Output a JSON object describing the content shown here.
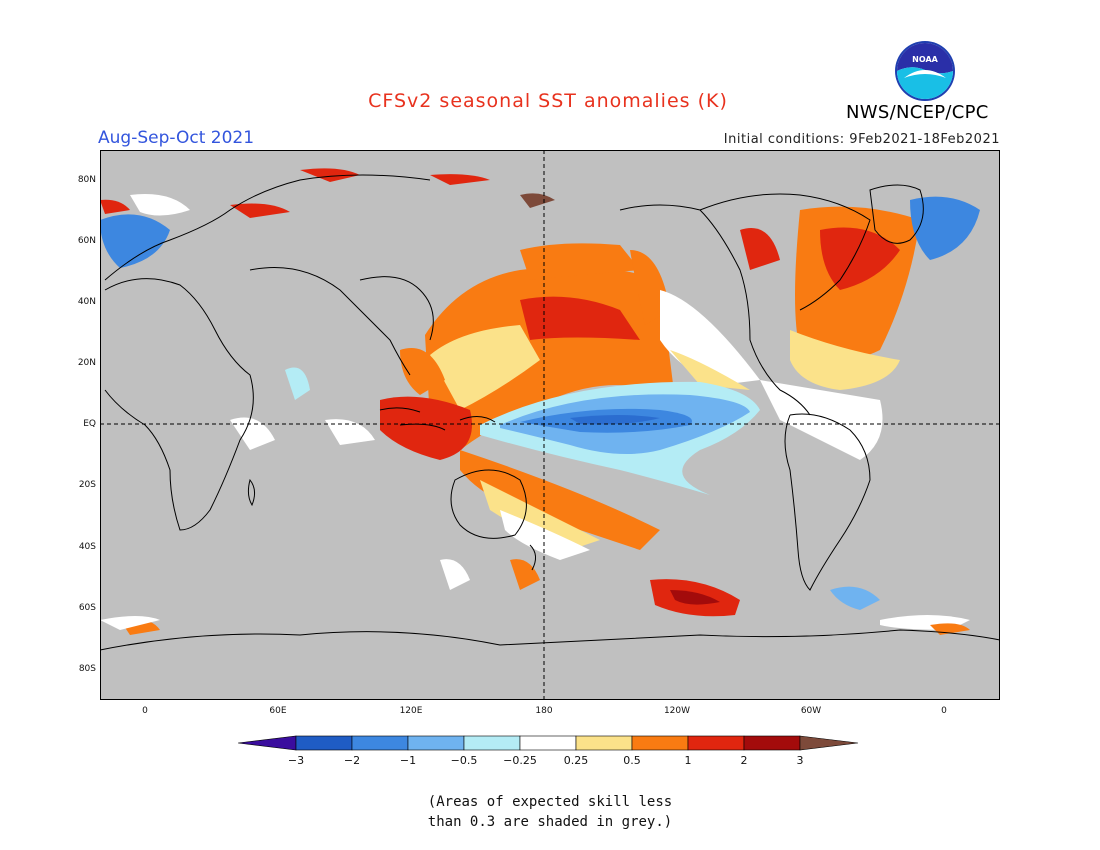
{
  "header": {
    "title": "CFSv2 seasonal SST anomalies (K)",
    "season": "Aug-Sep-Oct 2021",
    "initial_conditions": "Initial conditions: 9Feb2021-18Feb2021",
    "organization": "NWS/NCEP/CPC",
    "logo_text": "NOAA"
  },
  "colors": {
    "title": "#e8321e",
    "season": "#3355dd",
    "land": "#c0c0c0",
    "grey_mask": "#c0c0c0"
  },
  "map": {
    "lat_labels": [
      "80N",
      "60N",
      "40N",
      "20N",
      "EQ",
      "20S",
      "40S",
      "60S",
      "80S"
    ],
    "lon_labels": [
      "0",
      "60E",
      "120E",
      "180",
      "120W",
      "60W",
      "0"
    ]
  },
  "colorbar": {
    "ticks": [
      "−3",
      "−2",
      "−1",
      "−0.5",
      "−0.25",
      "0.25",
      "0.5",
      "1",
      "2",
      "3"
    ],
    "colors": [
      "#3a0d9e",
      "#1f5cc4",
      "#3d87e0",
      "#6fb3f0",
      "#b4ecf5",
      "#ffffff",
      "#fbe28a",
      "#f97b12",
      "#e0260f",
      "#a30b0b",
      "#7d4a3a"
    ]
  },
  "note": {
    "line1": "(Areas of expected skill less",
    "line2": "than 0.3 are shaded in grey.)"
  }
}
